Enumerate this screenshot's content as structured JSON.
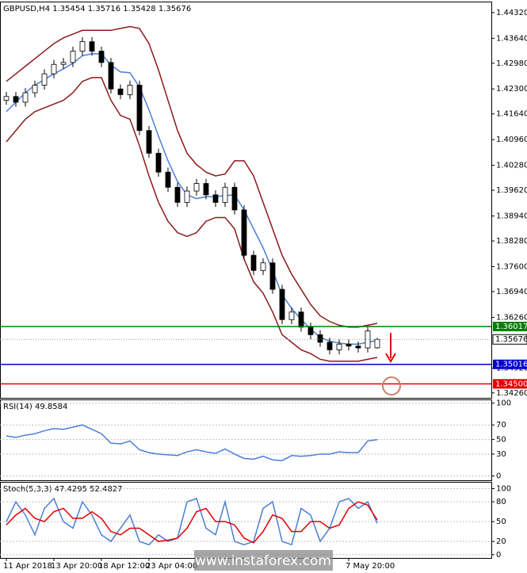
{
  "chart_data": [
    {
      "type": "candlestick",
      "title": "GBPUSD,H4 1.35454 1.35716 1.35428 1.35676",
      "categories": [
        "11 Apr 2018",
        null,
        null,
        null,
        null,
        "13 Apr 20:00",
        null,
        null,
        null,
        null,
        "18 Apr 12:00",
        null,
        null,
        null,
        null,
        "23 Apr 04:00",
        null,
        null,
        null,
        null,
        null,
        null,
        null,
        null,
        null,
        null,
        null,
        null,
        null,
        null,
        null,
        null,
        null,
        null,
        null,
        null,
        "7 May 20:00",
        null,
        null,
        null
      ],
      "open": [
        1.42,
        1.421,
        1.4195,
        1.422,
        1.424,
        1.427,
        1.4295,
        1.43,
        1.433,
        1.4355,
        1.433,
        1.43,
        1.423,
        1.4215,
        1.424,
        1.412,
        1.406,
        1.401,
        1.397,
        1.393,
        1.396,
        1.398,
        1.395,
        1.393,
        1.397,
        1.391,
        1.379,
        1.375,
        1.377,
        1.37,
        1.362,
        1.364,
        1.36,
        1.358,
        1.356,
        1.354,
        1.3555,
        1.355,
        1.3545,
        1.35454
      ],
      "high": [
        1.4222,
        1.4222,
        1.4232,
        1.4252,
        1.4282,
        1.4307,
        1.4312,
        1.4342,
        1.4367,
        1.4367,
        1.4342,
        1.4312,
        1.4242,
        1.4252,
        1.4252,
        1.4132,
        1.4072,
        1.4022,
        1.3982,
        1.3972,
        1.3992,
        1.3992,
        1.3962,
        1.3982,
        1.3982,
        1.3922,
        1.3802,
        1.3782,
        1.3782,
        1.3712,
        1.3652,
        1.3652,
        1.3612,
        1.3592,
        1.3572,
        1.3567,
        1.3567,
        1.3562,
        1.3602,
        1.35716
      ],
      "low": [
        1.4188,
        1.4183,
        1.4183,
        1.4208,
        1.4228,
        1.4258,
        1.4283,
        1.4288,
        1.4318,
        1.4318,
        1.4288,
        1.4218,
        1.4203,
        1.4203,
        1.4108,
        1.4048,
        1.3998,
        1.3958,
        1.3918,
        1.3918,
        1.3948,
        1.3938,
        1.3918,
        1.3918,
        1.3898,
        1.3778,
        1.3738,
        1.3738,
        1.3688,
        1.3608,
        1.3608,
        1.3588,
        1.3568,
        1.3548,
        1.3528,
        1.3528,
        1.3538,
        1.3533,
        1.3533,
        1.35428
      ],
      "close": [
        1.421,
        1.4195,
        1.422,
        1.424,
        1.427,
        1.4295,
        1.43,
        1.433,
        1.4355,
        1.433,
        1.43,
        1.423,
        1.4215,
        1.424,
        1.412,
        1.406,
        1.401,
        1.397,
        1.393,
        1.396,
        1.398,
        1.395,
        1.393,
        1.397,
        1.391,
        1.379,
        1.375,
        1.377,
        1.37,
        1.362,
        1.364,
        1.36,
        1.358,
        1.356,
        1.354,
        1.3555,
        1.355,
        1.3545,
        1.359,
        1.35676
      ],
      "up_color": "#ffffff",
      "down_color": "#000000",
      "series": [
        {
          "color": "#8b1a1a",
          "values": [
            1.425,
            1.427,
            1.429,
            1.431,
            1.433,
            1.435,
            1.4365,
            1.4375,
            1.4385,
            1.4385,
            1.4385,
            1.4385,
            1.439,
            1.4395,
            1.439,
            1.435,
            1.428,
            1.42,
            1.412,
            1.406,
            1.403,
            1.401,
            1.4,
            1.4005,
            1.404,
            1.404,
            1.4,
            1.393,
            1.386,
            1.379,
            1.374,
            1.37,
            1.366,
            1.363,
            1.3615,
            1.3605,
            1.36,
            1.36,
            1.3605,
            1.361
          ]
        },
        {
          "color": "#8b1a1a",
          "values": [
            1.409,
            1.412,
            1.415,
            1.417,
            1.418,
            1.419,
            1.42,
            1.422,
            1.425,
            1.426,
            1.426,
            1.42,
            1.416,
            1.415,
            1.408,
            1.4,
            1.393,
            1.388,
            1.385,
            1.384,
            1.385,
            1.388,
            1.389,
            1.389,
            1.386,
            1.378,
            1.372,
            1.369,
            1.364,
            1.358,
            1.356,
            1.354,
            1.353,
            1.3515,
            1.351,
            1.351,
            1.351,
            1.351,
            1.3515,
            1.352
          ]
        },
        {
          "color": "#4a7fd8",
          "values": [
            1.417,
            1.4195,
            1.422,
            1.424,
            1.4255,
            1.427,
            1.4283,
            1.4298,
            1.4318,
            1.4323,
            1.4323,
            1.4293,
            1.4275,
            1.4273,
            1.4235,
            1.4175,
            1.4105,
            1.404,
            1.3985,
            1.395,
            1.394,
            1.3945,
            1.3945,
            1.3948,
            1.395,
            1.391,
            1.386,
            1.381,
            1.375,
            1.3685,
            1.365,
            1.362,
            1.3595,
            1.3573,
            1.3563,
            1.3558,
            1.3555,
            1.3555,
            1.356,
            1.3565
          ]
        }
      ],
      "levels": [
        {
          "value": 1.36017,
          "label": "1.36017",
          "color": "#008000"
        },
        {
          "value": 1.35016,
          "label": "1.35016",
          "color": "#0000cc"
        },
        {
          "value": 1.345,
          "label": "1.34500",
          "color": "#e00000"
        }
      ],
      "ylim": [
        1.3413,
        1.4459
      ],
      "yticks": [
        {
          "value": 1.4432,
          "label": "1.44320"
        },
        {
          "value": 1.4364,
          "label": "1.43640"
        },
        {
          "value": 1.4298,
          "label": "1.42980"
        },
        {
          "value": 1.423,
          "label": "1.42300"
        },
        {
          "value": 1.4164,
          "label": "1.41640"
        },
        {
          "value": 1.4096,
          "label": "1.40960"
        },
        {
          "value": 1.4028,
          "label": "1.40280"
        },
        {
          "value": 1.3962,
          "label": "1.39620"
        },
        {
          "value": 1.3894,
          "label": "1.38940"
        },
        {
          "value": 1.3828,
          "label": "1.38280"
        },
        {
          "value": 1.376,
          "label": "1.37600"
        },
        {
          "value": 1.3694,
          "label": "1.36940"
        },
        {
          "value": 1.3626,
          "label": "1.36260"
        },
        {
          "value": 1.3492,
          "label": "1.34920"
        },
        {
          "value": 1.3426,
          "label": "1.34260"
        }
      ]
    },
    {
      "type": "line",
      "title": "RSI(14) 49.8584",
      "series": [
        {
          "color": "#4a7fd8",
          "values": [
            55,
            53,
            56,
            58,
            62,
            65,
            64,
            67,
            70,
            64,
            58,
            45,
            44,
            48,
            36,
            32,
            30,
            29,
            28,
            33,
            36,
            33,
            31,
            37,
            30,
            24,
            23,
            27,
            22,
            21,
            28,
            27,
            28,
            30,
            30,
            33,
            32,
            32,
            48,
            49.8584
          ]
        }
      ],
      "ylim": [
        -6,
        104
      ],
      "yticks": [
        100,
        70,
        50,
        30,
        0
      ]
    },
    {
      "type": "line",
      "title": "Stoch(5,3,3) 47.4295 52.4827",
      "series": [
        {
          "color": "#4a7fd8",
          "values": [
            50,
            80,
            60,
            30,
            70,
            85,
            50,
            40,
            80,
            60,
            30,
            20,
            40,
            60,
            20,
            15,
            30,
            20,
            25,
            80,
            85,
            40,
            30,
            80,
            20,
            15,
            20,
            70,
            80,
            20,
            15,
            70,
            60,
            20,
            40,
            80,
            85,
            70,
            80,
            47.4295
          ]
        },
        {
          "color": "#e00000",
          "values": [
            45,
            60,
            70,
            55,
            50,
            65,
            70,
            55,
            55,
            65,
            55,
            35,
            30,
            40,
            40,
            30,
            20,
            22,
            25,
            40,
            65,
            70,
            50,
            50,
            45,
            25,
            18,
            35,
            60,
            55,
            35,
            35,
            50,
            50,
            40,
            45,
            70,
            80,
            75,
            52.4827
          ]
        }
      ],
      "ylim": [
        -5,
        109
      ],
      "yticks": [
        100,
        80,
        50,
        20,
        0
      ]
    }
  ],
  "watermark": "www.instaforex.com"
}
